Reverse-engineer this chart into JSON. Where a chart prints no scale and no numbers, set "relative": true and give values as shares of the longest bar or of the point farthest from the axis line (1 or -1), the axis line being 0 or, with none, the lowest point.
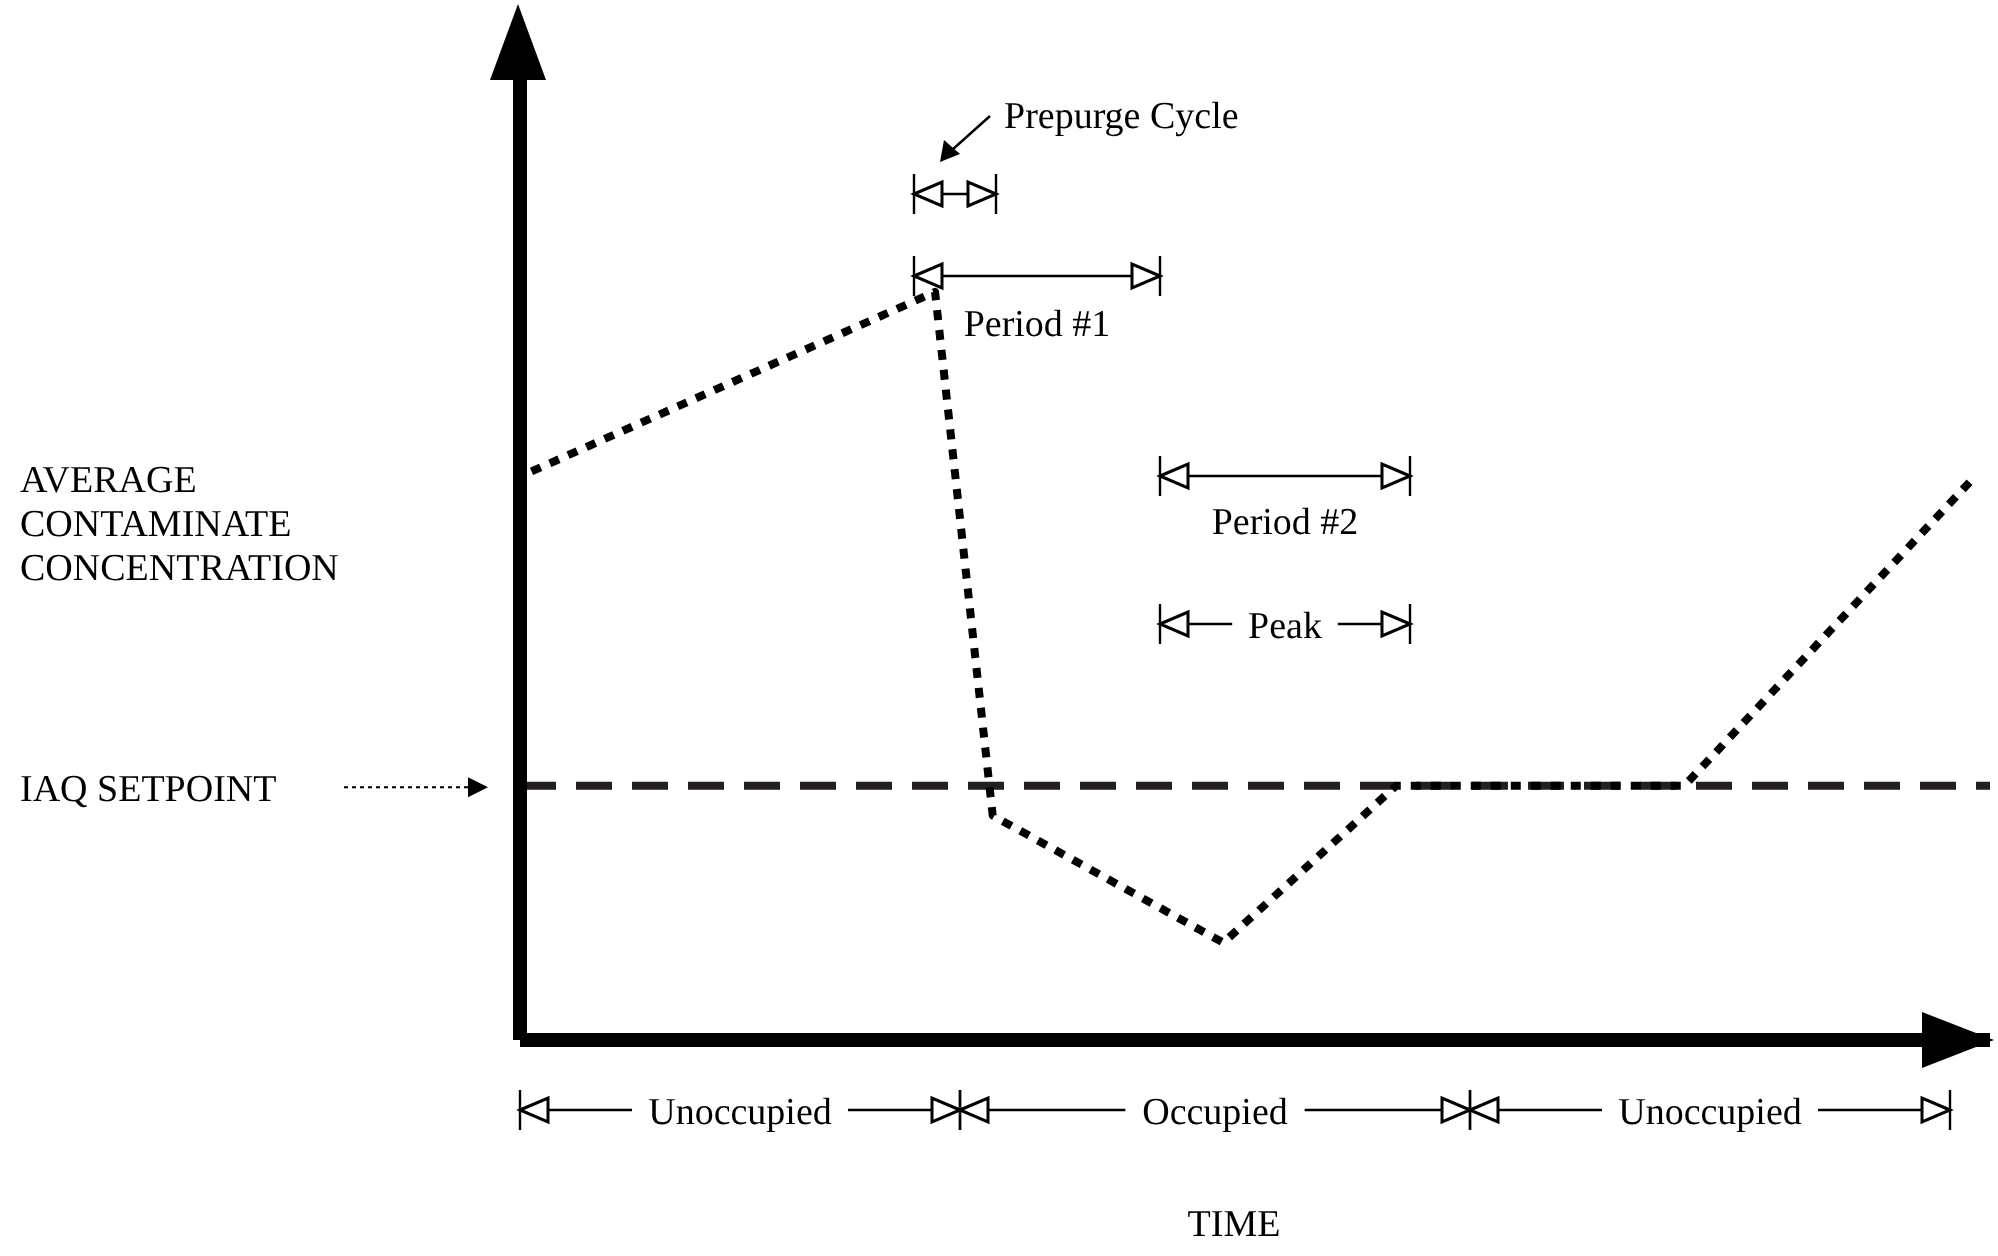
{
  "chart_data": {
    "type": "line",
    "relative": true,
    "xlabel": "TIME",
    "ylabel": "AVERAGE CONTAMINATE CONCENTRATION",
    "categories": [
      null,
      null,
      null,
      null,
      null,
      null,
      null,
      null,
      null,
      null,
      null,
      null,
      null,
      null,
      null,
      null,
      null,
      null,
      null,
      null,
      null,
      null,
      null,
      null,
      null,
      null
    ],
    "series": [
      {
        "color": "#000000",
        "values": [
          0.76,
          null,
          null,
          null,
          null,
          null,
          null,
          1,
          0.3,
          null,
          null,
          null,
          0.13,
          null,
          null,
          0.34,
          null,
          null,
          null,
          null,
          0.34,
          null,
          null,
          null,
          null,
          0.75
        ]
      }
    ],
    "line_style": "dotted",
    "marker": "none",
    "ref_lines": [
      {
        "axis": "y",
        "value": 0.34,
        "label": "IAQ SETPOINT",
        "color": "#231f20",
        "line_style": "dashed"
      }
    ],
    "annotations": [
      "Prepurge Cycle",
      "Period #1",
      "Period #2",
      "Peak",
      "Unoccupied",
      "Occupied",
      "Unoccupied"
    ]
  }
}
